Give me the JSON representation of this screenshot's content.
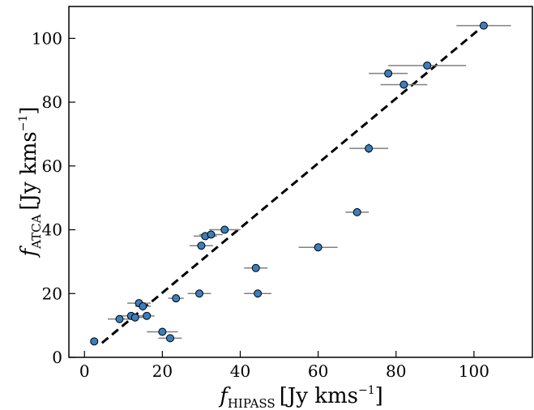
{
  "chart_data": {
    "type": "scatter",
    "xlabel": {
      "main": "f",
      "sub": "HIPASS",
      "unit": "[Jy kms",
      "sup": "−1",
      "close": "]"
    },
    "ylabel": {
      "main": "f",
      "sub": "ATCA",
      "unit": "[Jy kms",
      "sup": "−1",
      "close": "]"
    },
    "xlim": [
      -4,
      115
    ],
    "ylim": [
      0,
      110
    ],
    "xticks": [
      0,
      20,
      40,
      60,
      80,
      100
    ],
    "yticks": [
      0,
      20,
      40,
      60,
      80,
      100
    ],
    "grid": false,
    "marker_color": "#3a7ebf",
    "marker_edge": "#000000",
    "errorbar_color": "#808080",
    "line_color": "#000000",
    "fit_line": {
      "style": "dashed",
      "x": [
        4.5,
        102.5
      ],
      "y": [
        4.5,
        104
      ]
    },
    "points": [
      {
        "x": 2.5,
        "y": 5,
        "xerr": 0.5
      },
      {
        "x": 9,
        "y": 12,
        "xerr": 3
      },
      {
        "x": 12,
        "y": 13,
        "xerr": 3
      },
      {
        "x": 13,
        "y": 12.5,
        "xerr": 2
      },
      {
        "x": 14,
        "y": 17,
        "xerr": 3
      },
      {
        "x": 15,
        "y": 16,
        "xerr": 2
      },
      {
        "x": 16,
        "y": 13,
        "xerr": 2
      },
      {
        "x": 20,
        "y": 8,
        "xerr": 4
      },
      {
        "x": 22,
        "y": 6,
        "xerr": 3
      },
      {
        "x": 23.5,
        "y": 18.5,
        "xerr": 2
      },
      {
        "x": 29.5,
        "y": 20,
        "xerr": 3
      },
      {
        "x": 30,
        "y": 35,
        "xerr": 3
      },
      {
        "x": 31,
        "y": 38,
        "xerr": 3
      },
      {
        "x": 32.5,
        "y": 38.5,
        "xerr": 3
      },
      {
        "x": 36,
        "y": 40,
        "xerr": 4
      },
      {
        "x": 44,
        "y": 28,
        "xerr": 3
      },
      {
        "x": 44.5,
        "y": 20,
        "xerr": 3.5
      },
      {
        "x": 60,
        "y": 34.5,
        "xerr": 5
      },
      {
        "x": 70,
        "y": 45.5,
        "xerr": 3
      },
      {
        "x": 73,
        "y": 65.5,
        "xerr": 5,
        "yerr": 1.5
      },
      {
        "x": 78,
        "y": 89,
        "xerr": 5
      },
      {
        "x": 82,
        "y": 85.5,
        "xerr": 6
      },
      {
        "x": 88,
        "y": 91.5,
        "xerr": 10
      },
      {
        "x": 102.5,
        "y": 104,
        "xerr": 7
      }
    ]
  }
}
